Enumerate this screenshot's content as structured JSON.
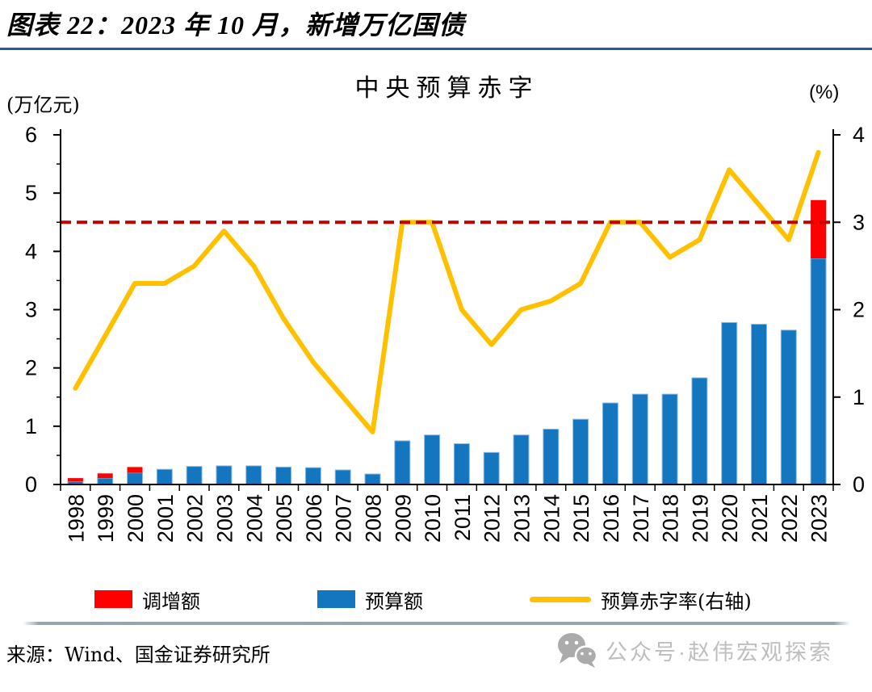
{
  "header": {
    "title": "图表 22：2023 年 10 月，新增万亿国债"
  },
  "chart_data": {
    "type": "combo",
    "title": "中央预算赤字",
    "left_axis": {
      "label": "(万亿元)",
      "min": 0,
      "max": 6,
      "ticks": [
        0,
        1,
        2,
        3,
        4,
        5,
        6
      ],
      "minor_step": 0.5
    },
    "right_axis": {
      "label": "(%)",
      "min": 0,
      "max": 4,
      "ticks": [
        0,
        1,
        2,
        3,
        4
      ]
    },
    "reference_line": {
      "axis": "right",
      "value": 3.0,
      "color": "#C00000",
      "style": "dashed"
    },
    "categories": [
      "1998",
      "1999",
      "2000",
      "2001",
      "2002",
      "2003",
      "2004",
      "2005",
      "2006",
      "2007",
      "2008",
      "2009",
      "2010",
      "2011",
      "2012",
      "2013",
      "2014",
      "2015",
      "2016",
      "2017",
      "2018",
      "2019",
      "2020",
      "2021",
      "2022",
      "2023"
    ],
    "series": [
      {
        "name": "调增额",
        "type": "bar",
        "stack": "deficit",
        "color": "#FE0000",
        "values": [
          0.06,
          0.08,
          0.1,
          0,
          0,
          0,
          0,
          0,
          0,
          0,
          0,
          0,
          0,
          0,
          0,
          0,
          0,
          0,
          0,
          0,
          0,
          0,
          0,
          0,
          0,
          1.0
        ]
      },
      {
        "name": "预算额",
        "type": "bar",
        "stack": "deficit",
        "color": "#1476BE",
        "edge_color": "#8FBCE6",
        "values": [
          0.05,
          0.11,
          0.2,
          0.26,
          0.31,
          0.32,
          0.32,
          0.3,
          0.29,
          0.25,
          0.18,
          0.75,
          0.85,
          0.7,
          0.55,
          0.85,
          0.95,
          1.12,
          1.4,
          1.55,
          1.55,
          1.83,
          2.78,
          2.75,
          2.65,
          3.88
        ]
      },
      {
        "name": "预算赤字率(右轴)",
        "type": "line",
        "axis": "right",
        "color": "#FFC000",
        "values": [
          1.1,
          1.7,
          2.3,
          2.3,
          2.5,
          2.9,
          2.5,
          1.9,
          1.4,
          1.0,
          0.6,
          3.0,
          3.0,
          2.0,
          1.6,
          2.0,
          2.1,
          2.3,
          3.0,
          3.0,
          2.6,
          2.8,
          3.6,
          3.2,
          2.8,
          3.8
        ]
      }
    ],
    "legend_position": "bottom"
  },
  "footer": {
    "source": "来源：Wind、国金证券研究所",
    "watermark": "公众号·赵伟宏观探索"
  },
  "colors": {
    "header_rule": "#1F5C99",
    "divider": "#96A3B0",
    "watermark_gray": "#BEBEBE",
    "wechat_icon_gray": "#ABABAB",
    "axis": "#000000"
  }
}
